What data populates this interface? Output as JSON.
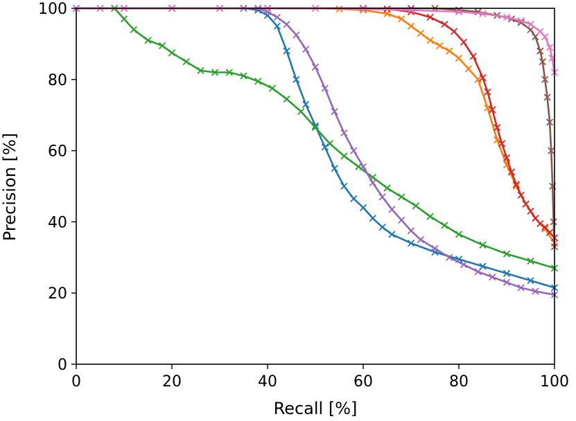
{
  "chart_data": {
    "type": "line",
    "xlabel": "Recall [%]",
    "ylabel": "Precision [%]",
    "xlim": [
      0,
      100
    ],
    "ylim": [
      0,
      100
    ],
    "xticks": [
      0,
      20,
      40,
      60,
      80,
      100
    ],
    "yticks": [
      0,
      20,
      40,
      60,
      80,
      100
    ],
    "grid": false,
    "marker": "x",
    "series": [
      {
        "color": "#1f77b4",
        "x": [
          0,
          10,
          20,
          30,
          35,
          38,
          40,
          42,
          44,
          46,
          48,
          50,
          52,
          54,
          56,
          58,
          60,
          62,
          64,
          66,
          70,
          75,
          80,
          85,
          90,
          95,
          100
        ],
        "y": [
          100,
          100,
          100,
          100,
          100,
          99.5,
          98,
          95,
          88,
          80,
          73,
          67,
          61,
          55,
          50,
          46.5,
          44,
          41,
          38.5,
          36.5,
          34,
          31.5,
          29.5,
          27.5,
          25.5,
          23.5,
          21.5
        ]
      },
      {
        "color": "#ff7f0e",
        "x": [
          0,
          20,
          40,
          50,
          55,
          60,
          65,
          68,
          70,
          72,
          74,
          76,
          78,
          80,
          82,
          84,
          86,
          88,
          90,
          92,
          94,
          96,
          98,
          100
        ],
        "y": [
          100,
          100,
          100,
          100,
          99.8,
          99.5,
          98.5,
          97,
          95,
          93,
          91,
          89.5,
          88,
          86,
          83,
          80,
          72,
          63,
          56,
          50,
          45,
          41,
          38,
          34
        ]
      },
      {
        "color": "#2ca02c",
        "x": [
          0,
          5,
          8,
          10,
          12,
          15,
          18,
          20,
          23,
          26,
          29,
          32,
          35,
          38,
          41,
          44,
          47,
          50,
          53,
          56,
          59,
          62,
          65,
          68,
          71,
          74,
          77,
          80,
          85,
          90,
          95,
          100
        ],
        "y": [
          100,
          100,
          100,
          97,
          94,
          91,
          89.5,
          87.5,
          85,
          82.5,
          82,
          82,
          81,
          79.5,
          77.5,
          74.5,
          71,
          66.5,
          62,
          58.5,
          55.5,
          52.5,
          49.5,
          47,
          44.5,
          41.5,
          39,
          36.5,
          33.5,
          31,
          29,
          27
        ]
      },
      {
        "color": "#d62728",
        "x": [
          0,
          20,
          40,
          60,
          65,
          70,
          74,
          77,
          79,
          81,
          83,
          85,
          86,
          87,
          88,
          89,
          90,
          91,
          92,
          93,
          94,
          95,
          96,
          97,
          98,
          99,
          100
        ],
        "y": [
          100,
          100,
          100,
          100,
          99.8,
          99,
          97.5,
          95.5,
          93.5,
          90.5,
          86.5,
          80.5,
          76.5,
          71.5,
          66.5,
          62,
          58,
          54,
          50.5,
          47.5,
          45,
          43,
          41,
          39.5,
          38.5,
          37,
          35.5
        ]
      },
      {
        "color": "#9467bd",
        "x": [
          0,
          10,
          20,
          30,
          35,
          38,
          40,
          42,
          44,
          46,
          48,
          50,
          52,
          54,
          56,
          58,
          60,
          62,
          64,
          66,
          68,
          70,
          72,
          75,
          78,
          81,
          84,
          87,
          90,
          93,
          96,
          100
        ],
        "y": [
          100,
          100,
          100,
          100,
          100,
          100,
          99,
          97.5,
          95.5,
          92.5,
          88.5,
          83.5,
          77.5,
          71,
          65,
          60,
          55.5,
          51,
          47,
          43.5,
          40.5,
          37.5,
          35,
          32.5,
          30,
          28,
          26,
          24.5,
          23,
          21.5,
          20.5,
          19.5
        ]
      },
      {
        "color": "#8c564b",
        "x": [
          0,
          20,
          40,
          60,
          70,
          75,
          80,
          84,
          88,
          91,
          93,
          95,
          96,
          97,
          97.5,
          98,
          98.5,
          99,
          99.3,
          99.6,
          99.8,
          100
        ],
        "y": [
          100,
          100,
          100,
          100,
          100,
          100,
          99.5,
          99,
          98,
          97,
          96,
          94,
          92,
          88,
          85,
          80,
          75,
          68,
          60,
          50,
          40,
          33
        ]
      },
      {
        "color": "#e377c2",
        "x": [
          0,
          5,
          10,
          20,
          30,
          40,
          50,
          60,
          70,
          80,
          85,
          90,
          93,
          95,
          97,
          98,
          99,
          99.5,
          100
        ],
        "y": [
          100,
          100,
          100,
          100,
          100,
          100,
          100,
          99.8,
          99.5,
          99,
          98.5,
          97.5,
          96.5,
          95.5,
          93.5,
          92,
          89,
          86,
          82
        ]
      }
    ]
  }
}
